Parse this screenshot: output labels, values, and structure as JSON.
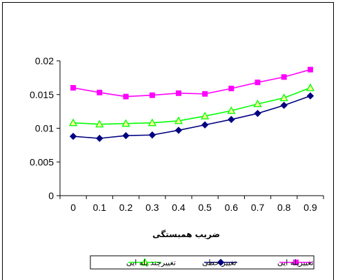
{
  "chart_data": {
    "type": "line",
    "x": [
      "0",
      "0.1",
      "0.2",
      "0.3",
      "0.4",
      "0.5",
      "0.6",
      "0.7",
      "0.8",
      "0.9"
    ],
    "ylim": [
      0,
      0.02
    ],
    "yticks": [
      "0",
      "0.005",
      "0.01",
      "0.015",
      "0.02"
    ],
    "xlabel": "ضریب همبستگی",
    "ylabel": "",
    "title": "",
    "grid": false,
    "legend_position": "bottom",
    "series": [
      {
        "name": "تغییرپله ایی",
        "color": "#ff00ff",
        "marker": "square",
        "values": [
          0.016,
          0.0153,
          0.0147,
          0.0149,
          0.0152,
          0.0151,
          0.0159,
          0.0168,
          0.0176,
          0.0187
        ]
      },
      {
        "name": "تغییر حطی",
        "color": "#000080",
        "marker": "diamond",
        "values": [
          0.0088,
          0.0085,
          0.0089,
          0.009,
          0.0097,
          0.0105,
          0.0113,
          0.0122,
          0.0134,
          0.0148
        ]
      },
      {
        "name": "تغییرچند پله ایی",
        "color": "#00ff00",
        "marker": "triangle",
        "values": [
          0.0108,
          0.0106,
          0.0107,
          0.0108,
          0.0111,
          0.0118,
          0.0126,
          0.0136,
          0.0145,
          0.016
        ]
      }
    ]
  }
}
